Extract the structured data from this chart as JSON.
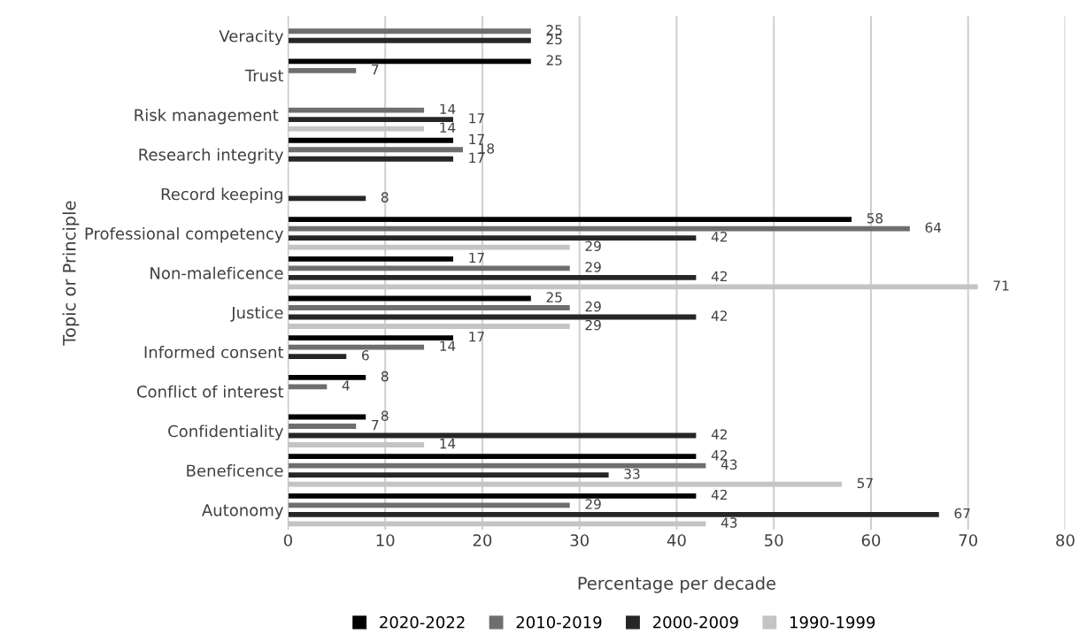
{
  "chart_data": {
    "type": "bar",
    "orientation": "horizontal",
    "xlabel": "Percentage per decade",
    "ylabel": "Topic or Principle",
    "categories": [
      "Veracity",
      "Trust",
      "Risk management ",
      "Research integrity",
      "Record keeping",
      "Professional competency",
      "Non-maleficence",
      "Justice",
      "Informed consent",
      "Conflict of interest",
      "Confidentiality",
      "Beneficence",
      "Autonomy"
    ],
    "series": [
      {
        "name": "2020-2022",
        "color": "#000000",
        "values": [
          null,
          25,
          null,
          17,
          null,
          58,
          17,
          25,
          17,
          8,
          8,
          42,
          42
        ]
      },
      {
        "name": "2010-2019",
        "color": "#6e6e6e",
        "values": [
          25,
          7,
          14,
          18,
          null,
          64,
          29,
          29,
          14,
          4,
          7,
          43,
          29
        ]
      },
      {
        "name": "2000-2009",
        "color": "#262626",
        "values": [
          25,
          null,
          17,
          17,
          8,
          42,
          42,
          42,
          6,
          null,
          42,
          33,
          67
        ]
      },
      {
        "name": "1990-1999",
        "color": "#c4c4c4",
        "values": [
          null,
          null,
          14,
          null,
          null,
          29,
          71,
          29,
          null,
          null,
          14,
          57,
          43
        ]
      }
    ],
    "xlim": [
      0,
      80
    ],
    "xticks": [
      0,
      10,
      20,
      30,
      40,
      50,
      60,
      70,
      80
    ],
    "grid": "x",
    "legend": "bottom",
    "data_labels": true
  }
}
